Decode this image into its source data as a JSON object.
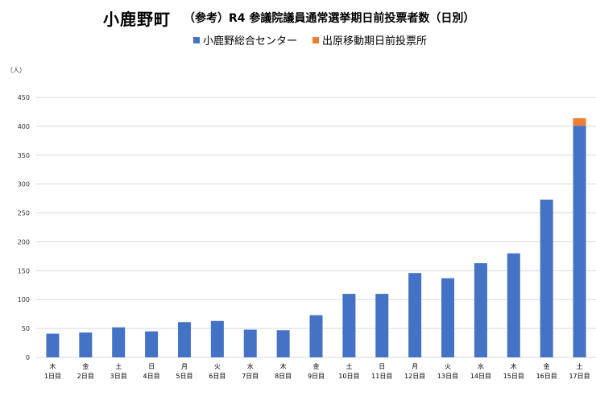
{
  "title": {
    "main": "小鹿野町",
    "sub": "（参考）R4 参議院議員通常選挙期日前投票者数（日別）"
  },
  "unit": "（人）",
  "colors": {
    "series1": "#4472C4",
    "series2": "#ED7D31",
    "grid": "#D9D9D9"
  },
  "chart_data": {
    "type": "bar",
    "stacked": true,
    "title": "小鹿野町　（参考）R4 参議院議員通常選挙期日前投票者数（日別）",
    "ylabel": "（人）",
    "ylim": [
      0,
      450
    ],
    "yticks": [
      0,
      50,
      100,
      150,
      200,
      250,
      300,
      350,
      400,
      450
    ],
    "grid": true,
    "legend_position": "top",
    "categories": [
      [
        "木",
        "1日目"
      ],
      [
        "金",
        "2日目"
      ],
      [
        "土",
        "3日目"
      ],
      [
        "日",
        "4日目"
      ],
      [
        "月",
        "5日目"
      ],
      [
        "火",
        "6日目"
      ],
      [
        "水",
        "7日目"
      ],
      [
        "木",
        "8日目"
      ],
      [
        "金",
        "9日目"
      ],
      [
        "土",
        "10日目"
      ],
      [
        "日",
        "11日目"
      ],
      [
        "月",
        "12日目"
      ],
      [
        "火",
        "13日目"
      ],
      [
        "水",
        "14日目"
      ],
      [
        "木",
        "15日目"
      ],
      [
        "金",
        "16日目"
      ],
      [
        "土",
        "17日目"
      ]
    ],
    "series": [
      {
        "name": "小鹿野総合センター",
        "color": "#4472C4",
        "values": [
          41,
          43,
          52,
          45,
          61,
          63,
          48,
          47,
          73,
          110,
          110,
          146,
          137,
          163,
          180,
          273,
          401
        ]
      },
      {
        "name": "出原移動期日前投票所",
        "color": "#ED7D31",
        "values": [
          0,
          0,
          0,
          0,
          0,
          0,
          0,
          0,
          0,
          0,
          0,
          0,
          0,
          0,
          0,
          0,
          13
        ]
      }
    ]
  }
}
